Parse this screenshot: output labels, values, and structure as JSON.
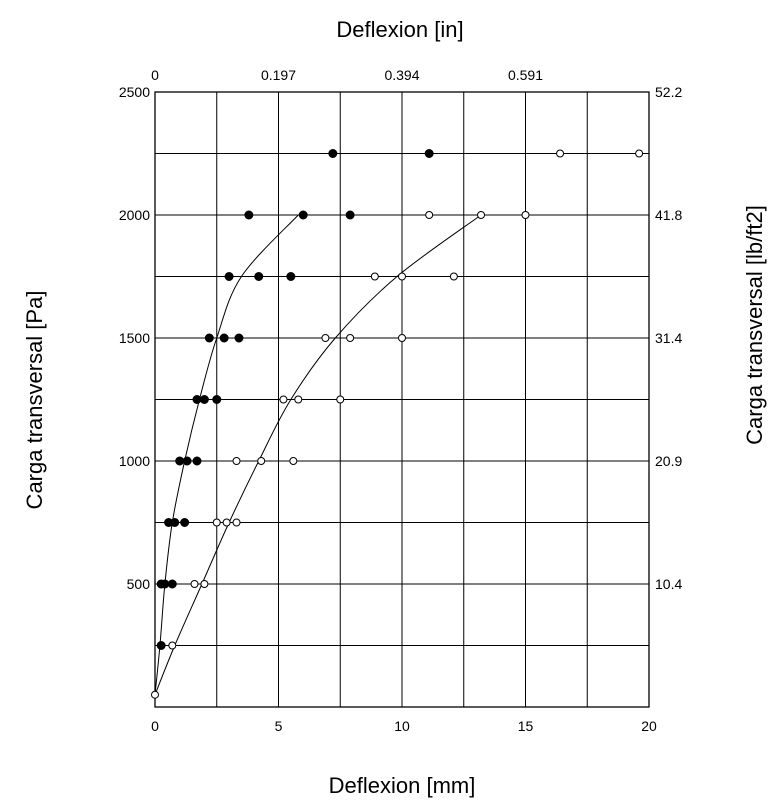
{
  "chart_data": {
    "type": "scatter",
    "title": "",
    "xlabel": "Deflexion [mm]",
    "x2label": "Deflexion [in]",
    "ylabel": "Carga transversal [Pa]",
    "y2label": "Carga transversal [lb/ft2]",
    "xlim": [
      0,
      20
    ],
    "ylim": [
      0,
      2500
    ],
    "grid": true,
    "x_ticks": [
      "0",
      "5",
      "10",
      "15",
      "20"
    ],
    "x_tick_values": [
      0,
      5,
      10,
      15,
      20
    ],
    "x2_ticks": [
      "0",
      "0.197",
      "0.394",
      "0.591"
    ],
    "x2_tick_values": [
      0,
      5,
      10,
      15
    ],
    "y_ticks": [
      "500",
      "1000",
      "1500",
      "2000",
      "2500"
    ],
    "y_tick_values": [
      500,
      1000,
      1500,
      2000,
      2500
    ],
    "y2_ticks": [
      "10.4",
      "20.9",
      "31.4",
      "41.8",
      "52.2"
    ],
    "y2_tick_values": [
      500,
      1000,
      1500,
      2000,
      2500
    ],
    "series": [
      {
        "marker": "filled-circle",
        "color": "#000000",
        "points": [
          [
            0.25,
            250
          ],
          [
            0.25,
            500
          ],
          [
            0.4,
            500
          ],
          [
            0.7,
            500
          ],
          [
            0.55,
            750
          ],
          [
            0.8,
            750
          ],
          [
            1.2,
            750
          ],
          [
            1.0,
            1000
          ],
          [
            1.3,
            1000
          ],
          [
            1.7,
            1000
          ],
          [
            1.7,
            1250
          ],
          [
            2.0,
            1250
          ],
          [
            2.5,
            1250
          ],
          [
            2.2,
            1500
          ],
          [
            2.8,
            1500
          ],
          [
            3.4,
            1500
          ],
          [
            3.0,
            1750
          ],
          [
            4.2,
            1750
          ],
          [
            5.5,
            1750
          ],
          [
            3.8,
            2000
          ],
          [
            6.0,
            2000
          ],
          [
            7.9,
            2000
          ],
          [
            7.2,
            2250
          ],
          [
            11.1,
            2250
          ]
        ],
        "trend": [
          [
            0,
            50
          ],
          [
            0.2,
            250
          ],
          [
            0.4,
            500
          ],
          [
            0.7,
            750
          ],
          [
            1.2,
            1000
          ],
          [
            1.8,
            1250
          ],
          [
            2.5,
            1500
          ],
          [
            3.5,
            1750
          ],
          [
            5.8,
            2000
          ]
        ]
      },
      {
        "marker": "open-circle",
        "color": "#000000",
        "points": [
          [
            0,
            50
          ],
          [
            0.7,
            250
          ],
          [
            1.6,
            500
          ],
          [
            2.0,
            500
          ],
          [
            2.5,
            750
          ],
          [
            2.9,
            750
          ],
          [
            3.3,
            750
          ],
          [
            3.3,
            1000
          ],
          [
            4.3,
            1000
          ],
          [
            5.6,
            1000
          ],
          [
            5.2,
            1250
          ],
          [
            5.8,
            1250
          ],
          [
            7.5,
            1250
          ],
          [
            6.9,
            1500
          ],
          [
            7.9,
            1500
          ],
          [
            10.0,
            1500
          ],
          [
            8.9,
            1750
          ],
          [
            10.0,
            1750
          ],
          [
            12.1,
            1750
          ],
          [
            11.1,
            2000
          ],
          [
            13.2,
            2000
          ],
          [
            15.0,
            2000
          ],
          [
            16.4,
            2250
          ],
          [
            19.6,
            2250
          ]
        ],
        "trend": [
          [
            0,
            50
          ],
          [
            0.8,
            250
          ],
          [
            1.9,
            500
          ],
          [
            3.0,
            750
          ],
          [
            4.2,
            1000
          ],
          [
            5.5,
            1250
          ],
          [
            7.3,
            1500
          ],
          [
            9.8,
            1750
          ],
          [
            13.2,
            2000
          ]
        ]
      }
    ]
  }
}
